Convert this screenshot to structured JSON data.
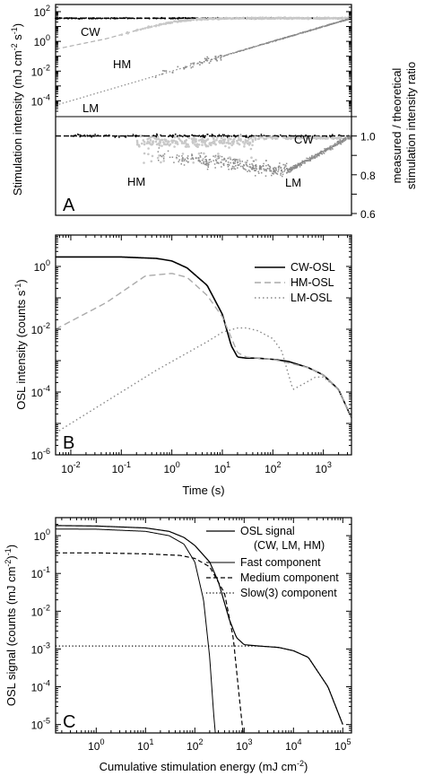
{
  "chart_data": [
    {
      "panel": "A",
      "type": "scatter",
      "ylabel": "Stimulation intensity (mJ cm-2 s-1)",
      "ylabel_parts": [
        "Stimulation intensity (mJ cm",
        "-2",
        " s",
        "-1",
        ")"
      ],
      "y2label_lines": [
        "measured / theoretical",
        "stimulation intensity ratio"
      ],
      "y_ticks": [
        {
          "base": "10",
          "exp": "2"
        },
        {
          "base": "10",
          "exp": "0"
        },
        {
          "base": "10",
          "exp": "-2"
        },
        {
          "base": "10",
          "exp": "-4"
        }
      ],
      "y_ticks_exp": [
        2,
        0,
        -2,
        -4
      ],
      "y2_ticks": [
        "1.0",
        "0.8",
        "0.6"
      ],
      "y2_tick_values": [
        1.0,
        0.8,
        0.6
      ],
      "annotations_top": [
        "CW",
        "HM",
        "LM"
      ],
      "annotations_bottom": [
        "CW",
        "HM",
        "LM"
      ],
      "series_intensity": [
        {
          "name": "CW",
          "x": [
            0.005,
            3600
          ],
          "y": [
            36,
            36
          ]
        },
        {
          "name": "HM",
          "x": [
            0.005,
            0.05,
            0.3,
            1,
            3,
            10,
            30,
            100,
            3600
          ],
          "y": [
            0.3,
            1.5,
            8,
            20,
            30,
            34,
            36,
            36,
            36
          ]
        },
        {
          "name": "LM",
          "x": [
            0.005,
            3600
          ],
          "y": [
            5e-05,
            36
          ]
        }
      ],
      "series_ratio": [
        {
          "name": "CW",
          "y_mean": 1.0
        },
        {
          "name": "HM",
          "y_range": [
            0.85,
            1.02
          ]
        },
        {
          "name": "LM",
          "y_range": [
            0.72,
            1.0
          ]
        }
      ]
    },
    {
      "panel": "B",
      "type": "line",
      "xlabel": "Time (s)",
      "ylabel": "OSL intensity (counts s-1)",
      "ylabel_parts": [
        "OSL intensity (counts s",
        "-1",
        ")"
      ],
      "x_ticks": [
        {
          "base": "10",
          "exp": "-2"
        },
        {
          "base": "10",
          "exp": "-1"
        },
        {
          "base": "10",
          "exp": "0"
        },
        {
          "base": "10",
          "exp": "1"
        },
        {
          "base": "10",
          "exp": "2"
        },
        {
          "base": "10",
          "exp": "3"
        }
      ],
      "x_ticks_exp": [
        -2,
        -1,
        0,
        1,
        2,
        3
      ],
      "y_ticks": [
        {
          "base": "10",
          "exp": "0"
        },
        {
          "base": "10",
          "exp": "-2"
        },
        {
          "base": "10",
          "exp": "-4"
        },
        {
          "base": "10",
          "exp": "-6"
        }
      ],
      "y_ticks_exp": [
        0,
        -2,
        -4,
        -6
      ],
      "xlim": [
        0.005,
        3600
      ],
      "ylim": [
        1e-06,
        10
      ],
      "legend": [
        "CW-OSL",
        "HM-OSL",
        "LM-OSL"
      ],
      "series": [
        {
          "name": "CW-OSL",
          "x": [
            0.005,
            0.1,
            0.5,
            1,
            2,
            5,
            10,
            15,
            20,
            30,
            50,
            100,
            200,
            500,
            1000,
            2000,
            3600
          ],
          "y": [
            2,
            2,
            1.8,
            1.5,
            0.9,
            0.25,
            0.03,
            0.003,
            0.0013,
            0.0012,
            0.0012,
            0.0011,
            0.00095,
            0.0006,
            0.00035,
            0.00012,
            1.5e-05
          ]
        },
        {
          "name": "HM-OSL",
          "x": [
            0.005,
            0.05,
            0.3,
            1,
            2,
            5,
            10,
            20,
            30,
            50,
            100,
            500,
            1000,
            2000,
            3600
          ],
          "y": [
            0.01,
            0.07,
            0.5,
            0.6,
            0.45,
            0.12,
            0.025,
            0.0018,
            0.0013,
            0.0012,
            0.0011,
            0.0006,
            0.00035,
            0.00012,
            1.5e-05
          ]
        },
        {
          "name": "LM-OSL",
          "x": [
            0.005,
            0.05,
            0.5,
            5,
            10,
            20,
            30,
            50,
            100,
            150,
            200,
            250,
            400,
            700,
            1000,
            2000,
            3600
          ],
          "y": [
            5e-06,
            5e-05,
            0.0005,
            0.004,
            0.008,
            0.011,
            0.011,
            0.009,
            0.005,
            0.002,
            0.0004,
            0.00012,
            0.00018,
            0.0003,
            0.0003,
            0.00012,
            1.5e-05
          ]
        }
      ]
    },
    {
      "panel": "C",
      "type": "line",
      "xlabel": "Cumulative stimulation energy (mJ cm-2)",
      "xlabel_parts": [
        "Cumulative stimulation energy (mJ cm",
        "-2",
        ")"
      ],
      "ylabel": "OSL signal (counts (mJ cm-2)-1)",
      "ylabel_parts": [
        "OSL signal (counts (mJ cm",
        "-2",
        ")",
        "-1",
        ")"
      ],
      "x_ticks": [
        {
          "base": "10",
          "exp": "0"
        },
        {
          "base": "10",
          "exp": "1"
        },
        {
          "base": "10",
          "exp": "2"
        },
        {
          "base": "10",
          "exp": "3"
        },
        {
          "base": "10",
          "exp": "4"
        },
        {
          "base": "10",
          "exp": "5"
        }
      ],
      "x_ticks_exp": [
        0,
        1,
        2,
        3,
        4,
        5
      ],
      "y_ticks": [
        {
          "text": "10",
          "exp": "0"
        },
        {
          "text": "10",
          "exp": "-1"
        },
        {
          "text": "10",
          "exp": "-2"
        },
        {
          "text": "10",
          "exp": "-3"
        },
        {
          "text": "10",
          "exp": "-4"
        },
        {
          "text": "10",
          "exp": "-5"
        }
      ],
      "y_tick_labels": [
        "10⁰",
        "10⁻¹",
        "10⁻²",
        "10⁻³",
        "10⁻⁴",
        "10⁻⁵"
      ],
      "y_ticks_exp": [
        0,
        -1,
        -2,
        -3,
        -4,
        -5
      ],
      "xlim": [
        0.15,
        150000
      ],
      "ylim": [
        6e-06,
        3
      ],
      "legend": [
        "OSL signal",
        "(CW, LM, HM)",
        "Fast component",
        "Medium component",
        "Slow(3) component"
      ],
      "series": [
        {
          "name": "OSL signal (CW, LM, HM)",
          "x": [
            0.15,
            1,
            10,
            30,
            60,
            100,
            200,
            300,
            500,
            700,
            1000,
            2000,
            5000,
            10000,
            20000,
            50000,
            100000
          ],
          "y": [
            1.85,
            1.8,
            1.6,
            1.3,
            0.9,
            0.55,
            0.2,
            0.06,
            0.006,
            0.002,
            0.0013,
            0.0012,
            0.0011,
            0.0009,
            0.0006,
            0.0001,
            1e-05
          ]
        },
        {
          "name": "Fast component",
          "x": [
            0.15,
            1,
            10,
            30,
            60,
            100,
            150,
            200,
            240,
            260
          ],
          "y": [
            1.5,
            1.48,
            1.3,
            1.0,
            0.6,
            0.2,
            0.02,
            0.0006,
            2e-05,
            6e-06
          ]
        },
        {
          "name": "Medium component",
          "x": [
            0.15,
            1,
            10,
            50,
            100,
            200,
            400,
            600,
            800,
            950
          ],
          "y": [
            0.35,
            0.35,
            0.33,
            0.3,
            0.25,
            0.15,
            0.03,
            0.002,
            5e-05,
            6e-06
          ]
        },
        {
          "name": "Slow(3) component",
          "x": [
            0.15,
            100,
            1000,
            2000,
            5000,
            10000,
            20000,
            50000,
            100000
          ],
          "y": [
            0.0012,
            0.0012,
            0.0012,
            0.0012,
            0.0011,
            0.0009,
            0.0006,
            0.0001,
            1e-05
          ]
        }
      ]
    }
  ]
}
